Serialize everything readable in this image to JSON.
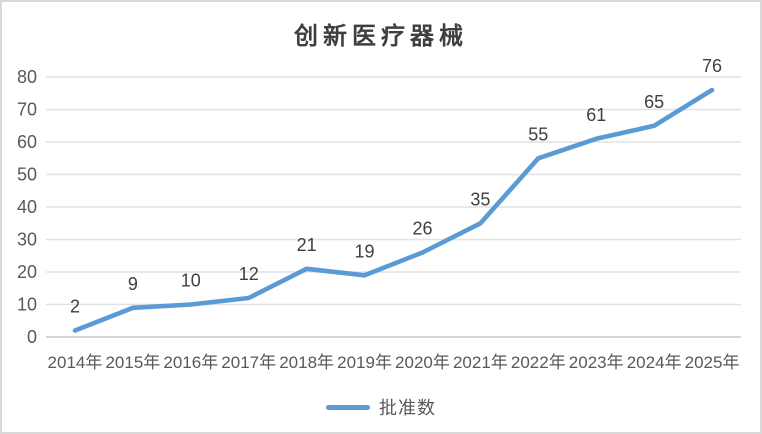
{
  "chart_data": {
    "type": "line",
    "title": "创新医疗器械",
    "categories": [
      "2014年",
      "2015年",
      "2016年",
      "2017年",
      "2018年",
      "2019年",
      "2020年",
      "2021年",
      "2022年",
      "2023年",
      "2024年",
      "2025年"
    ],
    "series": [
      {
        "name": "批准数",
        "color": "#5B9BD5",
        "values": [
          2,
          9,
          10,
          12,
          21,
          19,
          26,
          35,
          55,
          61,
          65,
          76
        ]
      }
    ],
    "xlabel": "",
    "ylabel": "",
    "ylim": [
      0,
      80
    ],
    "ytick_step": 10,
    "yticks": [
      0,
      10,
      20,
      30,
      40,
      50,
      60,
      70,
      80
    ],
    "grid": true,
    "data_labels": true,
    "legend_position": "bottom"
  },
  "colors": {
    "line": "#5B9BD5",
    "title_text": "#3F3F3F",
    "axis_text": "#595959",
    "data_label_text": "#404040",
    "gridline": "#E2E2E2",
    "axis_line": "#C6C6C6",
    "border": "#D9D9D9",
    "background": "#FFFFFF"
  }
}
